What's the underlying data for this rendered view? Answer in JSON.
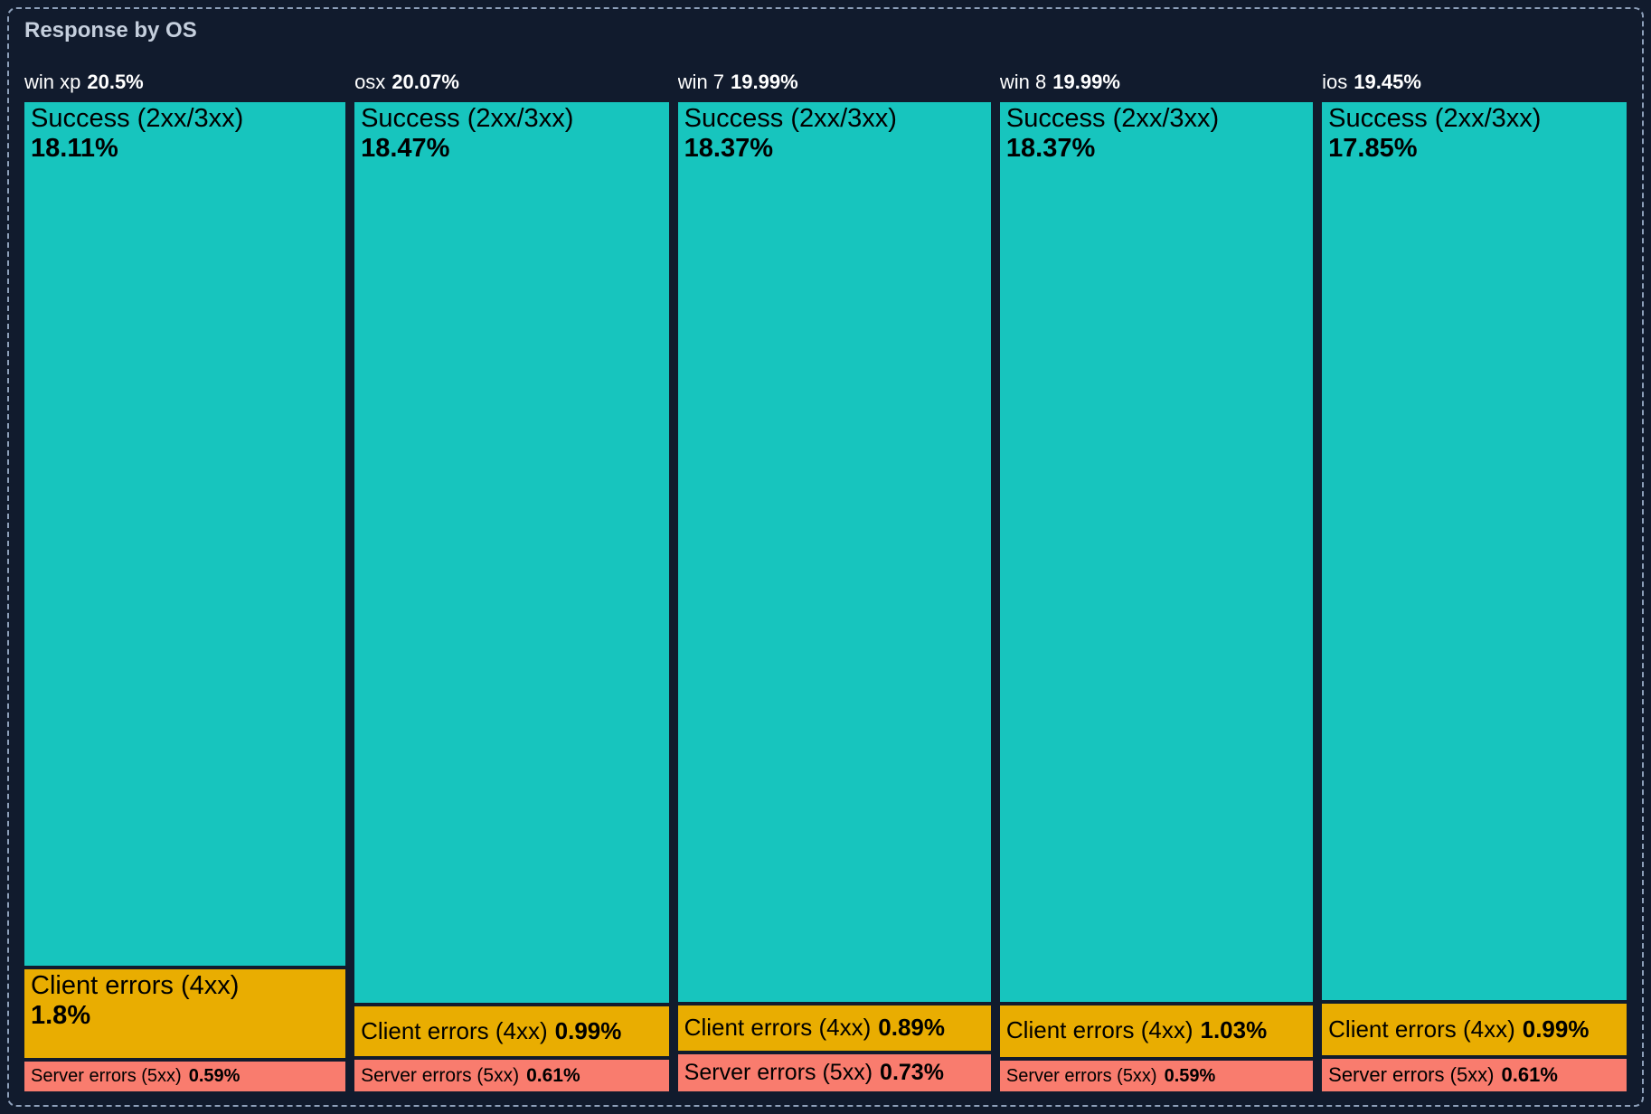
{
  "title": "Response by OS",
  "colors": {
    "background": "#111b2d",
    "panel_border": "#8ea0ba",
    "title_text": "#c5cfdd",
    "header_text": "#ffffff",
    "segment_text": "#000000",
    "success": "#17c5be",
    "client-errors": "#e9ad01",
    "server-errors": "#f97c6e"
  },
  "chart_data": {
    "type": "treemap",
    "title": "Response by OS",
    "unit": "%",
    "orientation": "columns sized by OS share; segments stacked vertically sized by value",
    "legend": "none (labels drawn inside tiles)",
    "columns": [
      {
        "os": "win xp",
        "share": 20.5,
        "share_label": "20.5%",
        "segments": [
          {
            "label": "Success (2xx/3xx)",
            "value": 18.11,
            "pct_label": "18.11%",
            "kind": "success"
          },
          {
            "label": "Client errors (4xx)",
            "value": 1.8,
            "pct_label": "1.8%",
            "kind": "client-errors"
          },
          {
            "label": "Server errors (5xx)",
            "value": 0.59,
            "pct_label": "0.59%",
            "kind": "server-errors"
          }
        ]
      },
      {
        "os": "osx",
        "share": 20.07,
        "share_label": "20.07%",
        "segments": [
          {
            "label": "Success (2xx/3xx)",
            "value": 18.47,
            "pct_label": "18.47%",
            "kind": "success"
          },
          {
            "label": "Client errors (4xx)",
            "value": 0.99,
            "pct_label": "0.99%",
            "kind": "client-errors"
          },
          {
            "label": "Server errors (5xx)",
            "value": 0.61,
            "pct_label": "0.61%",
            "kind": "server-errors"
          }
        ]
      },
      {
        "os": "win 7",
        "share": 19.99,
        "share_label": "19.99%",
        "segments": [
          {
            "label": "Success (2xx/3xx)",
            "value": 18.37,
            "pct_label": "18.37%",
            "kind": "success"
          },
          {
            "label": "Client errors (4xx)",
            "value": 0.89,
            "pct_label": "0.89%",
            "kind": "client-errors"
          },
          {
            "label": "Server errors (5xx)",
            "value": 0.73,
            "pct_label": "0.73%",
            "kind": "server-errors"
          }
        ]
      },
      {
        "os": "win 8",
        "share": 19.99,
        "share_label": "19.99%",
        "segments": [
          {
            "label": "Success (2xx/3xx)",
            "value": 18.37,
            "pct_label": "18.37%",
            "kind": "success"
          },
          {
            "label": "Client errors (4xx)",
            "value": 1.03,
            "pct_label": "1.03%",
            "kind": "client-errors"
          },
          {
            "label": "Server errors (5xx)",
            "value": 0.59,
            "pct_label": "0.59%",
            "kind": "server-errors"
          }
        ]
      },
      {
        "os": "ios",
        "share": 19.45,
        "share_label": "19.45%",
        "segments": [
          {
            "label": "Success (2xx/3xx)",
            "value": 17.85,
            "pct_label": "17.85%",
            "kind": "success"
          },
          {
            "label": "Client errors (4xx)",
            "value": 0.99,
            "pct_label": "0.99%",
            "kind": "client-errors"
          },
          {
            "label": "Server errors (5xx)",
            "value": 0.61,
            "pct_label": "0.61%",
            "kind": "server-errors"
          }
        ]
      }
    ]
  }
}
